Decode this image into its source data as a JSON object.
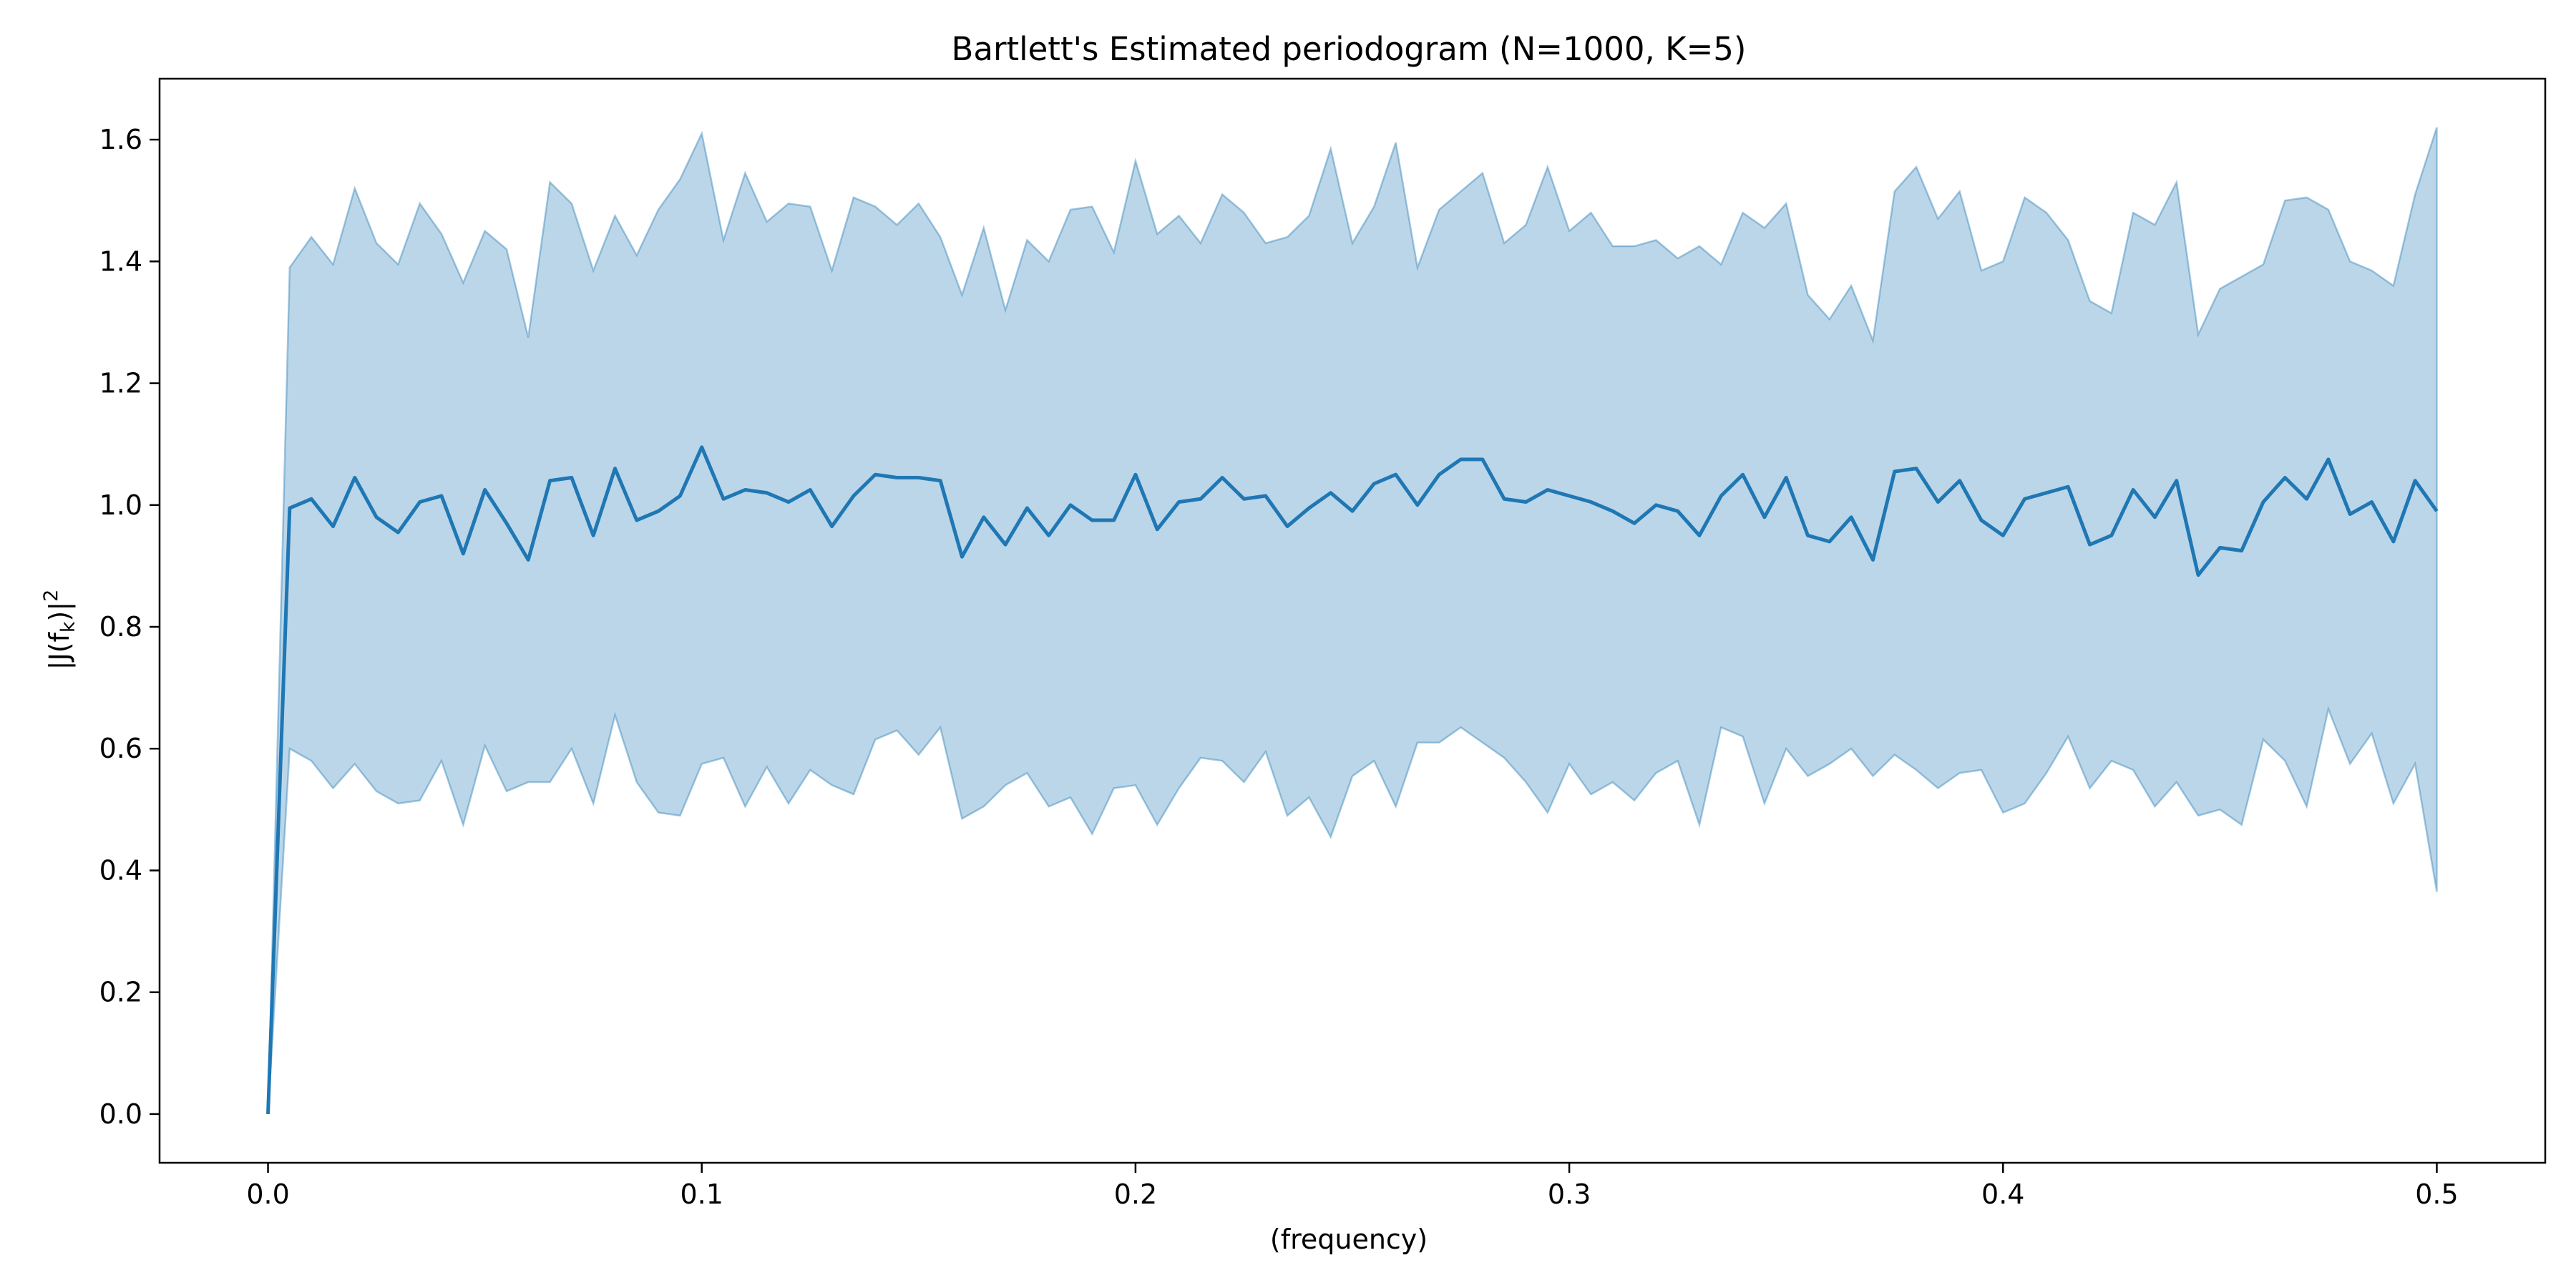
{
  "chart_data": {
    "type": "line",
    "title": "Bartlett's Estimated periodogram (N=1000, K=5)",
    "xlabel": "(frequency)",
    "ylabel": "|J(f_k)|²",
    "ylabel_main": "|J(f",
    "ylabel_sub": "k",
    "ylabel_close": ")|",
    "ylabel_sup": "2",
    "xlim": [
      -0.025,
      0.525
    ],
    "ylim": [
      -0.08,
      1.7
    ],
    "xticks": [
      0.0,
      0.1,
      0.2,
      0.3,
      0.4,
      0.5
    ],
    "xtick_labels": [
      "0.0",
      "0.1",
      "0.2",
      "0.3",
      "0.4",
      "0.5"
    ],
    "yticks": [
      0.0,
      0.2,
      0.4,
      0.6,
      0.8,
      1.0,
      1.2,
      1.4,
      1.6
    ],
    "ytick_labels": [
      "0.0",
      "0.2",
      "0.4",
      "0.6",
      "0.8",
      "1.0",
      "1.2",
      "1.4",
      "1.6"
    ],
    "grid": false,
    "legend": false,
    "line_color": "#1f77b4",
    "fill_color": "#1f77b4",
    "fill_alpha": 0.3,
    "x": [
      0.0,
      0.005,
      0.01,
      0.015,
      0.02,
      0.025,
      0.03,
      0.035,
      0.04,
      0.045,
      0.05,
      0.055,
      0.06,
      0.065,
      0.07,
      0.075,
      0.08,
      0.085,
      0.09,
      0.095,
      0.1,
      0.105,
      0.11,
      0.115,
      0.12,
      0.125,
      0.13,
      0.135,
      0.14,
      0.145,
      0.15,
      0.155,
      0.16,
      0.165,
      0.17,
      0.175,
      0.18,
      0.185,
      0.19,
      0.195,
      0.2,
      0.205,
      0.21,
      0.215,
      0.22,
      0.225,
      0.23,
      0.235,
      0.24,
      0.245,
      0.25,
      0.255,
      0.26,
      0.265,
      0.27,
      0.275,
      0.28,
      0.285,
      0.29,
      0.295,
      0.3,
      0.305,
      0.31,
      0.315,
      0.32,
      0.325,
      0.33,
      0.335,
      0.34,
      0.345,
      0.35,
      0.355,
      0.36,
      0.365,
      0.37,
      0.375,
      0.38,
      0.385,
      0.39,
      0.395,
      0.4,
      0.405,
      0.41,
      0.415,
      0.42,
      0.425,
      0.43,
      0.435,
      0.44,
      0.445,
      0.45,
      0.455,
      0.46,
      0.465,
      0.47,
      0.475,
      0.48,
      0.485,
      0.49,
      0.495,
      0.5
    ],
    "series": [
      {
        "values": [
          0.0,
          0.995,
          1.01,
          0.965,
          1.045,
          0.98,
          0.955,
          1.005,
          1.015,
          0.92,
          1.025,
          0.97,
          0.91,
          1.04,
          1.045,
          0.95,
          1.06,
          0.975,
          0.99,
          1.015,
          1.095,
          1.01,
          1.025,
          1.02,
          1.005,
          1.025,
          0.965,
          1.015,
          1.05,
          1.045,
          1.045,
          1.04,
          0.915,
          0.98,
          0.935,
          0.995,
          0.95,
          1.0,
          0.975,
          0.975,
          1.05,
          0.96,
          1.005,
          1.01,
          1.045,
          1.01,
          1.015,
          0.965,
          0.995,
          1.02,
          0.99,
          1.035,
          1.05,
          1.0,
          1.05,
          1.075,
          1.075,
          1.01,
          1.005,
          1.025,
          1.015,
          1.005,
          0.99,
          0.97,
          1.0,
          0.99,
          0.95,
          1.015,
          1.05,
          0.98,
          1.045,
          0.95,
          0.94,
          0.98,
          0.91,
          1.055,
          1.06,
          1.005,
          1.04,
          0.975,
          0.95,
          1.01,
          1.02,
          1.03,
          0.935,
          0.95,
          1.025,
          0.98,
          1.04,
          0.885,
          0.93,
          0.925,
          1.005,
          1.045,
          1.01,
          1.075,
          0.985,
          1.005,
          0.94,
          1.04,
          0.99
        ]
      }
    ],
    "band": {
      "upper": [
        0.0,
        1.39,
        1.44,
        1.395,
        1.52,
        1.43,
        1.395,
        1.495,
        1.445,
        1.365,
        1.45,
        1.42,
        1.275,
        1.53,
        1.495,
        1.385,
        1.475,
        1.41,
        1.485,
        1.535,
        1.61,
        1.435,
        1.545,
        1.465,
        1.495,
        1.49,
        1.385,
        1.505,
        1.49,
        1.46,
        1.495,
        1.44,
        1.345,
        1.455,
        1.32,
        1.435,
        1.4,
        1.485,
        1.49,
        1.415,
        1.565,
        1.445,
        1.475,
        1.43,
        1.51,
        1.48,
        1.43,
        1.44,
        1.475,
        1.585,
        1.43,
        1.49,
        1.595,
        1.39,
        1.485,
        1.515,
        1.545,
        1.43,
        1.46,
        1.555,
        1.45,
        1.48,
        1.425,
        1.425,
        1.435,
        1.405,
        1.425,
        1.395,
        1.48,
        1.455,
        1.495,
        1.345,
        1.305,
        1.36,
        1.27,
        1.515,
        1.555,
        1.47,
        1.515,
        1.385,
        1.4,
        1.505,
        1.48,
        1.435,
        1.335,
        1.315,
        1.48,
        1.46,
        1.53,
        1.28,
        1.355,
        1.375,
        1.395,
        1.5,
        1.505,
        1.485,
        1.4,
        1.385,
        1.36,
        1.51,
        1.62
      ],
      "lower": [
        0.0,
        0.6,
        0.58,
        0.535,
        0.575,
        0.53,
        0.51,
        0.515,
        0.58,
        0.475,
        0.605,
        0.53,
        0.545,
        0.545,
        0.6,
        0.51,
        0.655,
        0.545,
        0.495,
        0.49,
        0.575,
        0.585,
        0.505,
        0.57,
        0.51,
        0.565,
        0.54,
        0.525,
        0.615,
        0.63,
        0.59,
        0.635,
        0.485,
        0.505,
        0.54,
        0.56,
        0.505,
        0.52,
        0.46,
        0.535,
        0.54,
        0.475,
        0.535,
        0.585,
        0.58,
        0.545,
        0.595,
        0.49,
        0.52,
        0.455,
        0.555,
        0.58,
        0.505,
        0.61,
        0.61,
        0.635,
        0.61,
        0.585,
        0.545,
        0.495,
        0.575,
        0.525,
        0.545,
        0.515,
        0.56,
        0.58,
        0.475,
        0.635,
        0.62,
        0.51,
        0.6,
        0.555,
        0.575,
        0.6,
        0.555,
        0.59,
        0.565,
        0.535,
        0.56,
        0.565,
        0.495,
        0.51,
        0.56,
        0.62,
        0.535,
        0.58,
        0.565,
        0.505,
        0.545,
        0.49,
        0.5,
        0.475,
        0.615,
        0.58,
        0.505,
        0.665,
        0.575,
        0.625,
        0.51,
        0.575,
        0.365
      ]
    }
  }
}
